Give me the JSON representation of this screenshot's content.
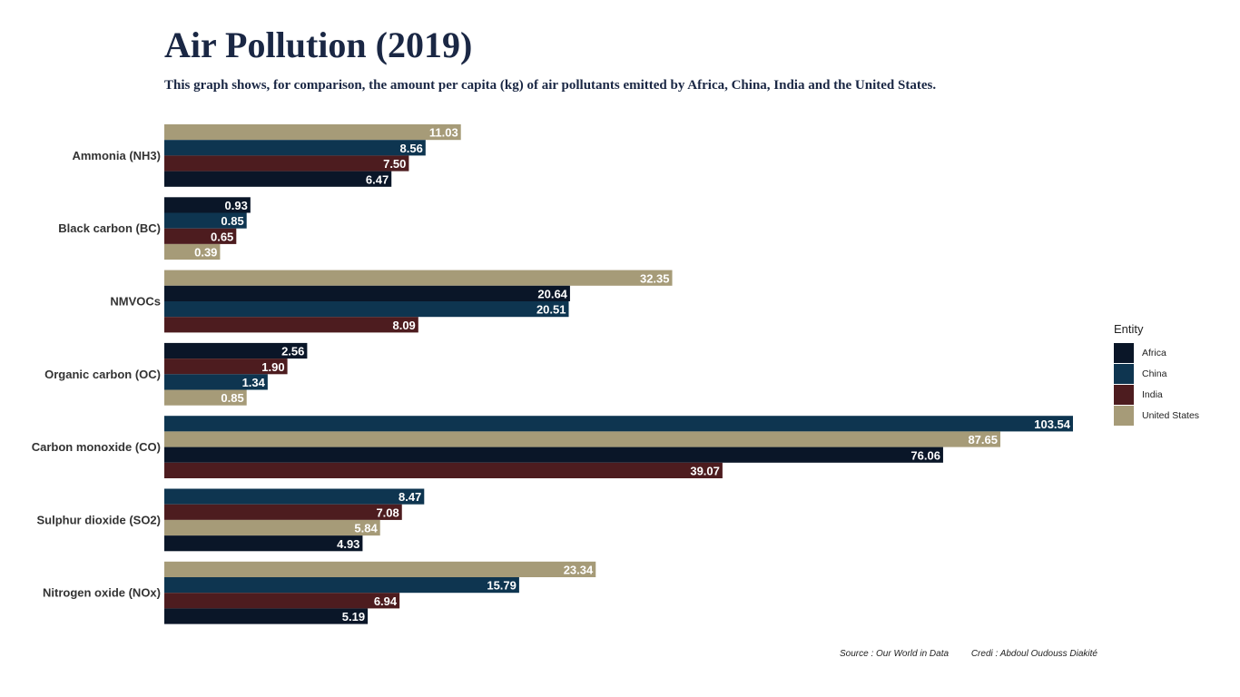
{
  "title": "Air Pollution (2019)",
  "subtitle": "This graph shows, for comparison, the amount per capita (kg) of air pollutants emitted by Africa, China, India and the United States.",
  "source": "Source : Our World in Data",
  "credit": "Credi : Abdoul Oudouss Diakité",
  "legend": {
    "title": "Entity",
    "items": [
      {
        "label": "Africa",
        "color": "#0a1628"
      },
      {
        "label": "China",
        "color": "#0e3550"
      },
      {
        "label": "India",
        "color": "#4d1c1f"
      },
      {
        "label": "United States",
        "color": "#a69b78"
      }
    ]
  },
  "chart_data": {
    "type": "bar",
    "orientation": "horizontal",
    "categories": [
      "Ammonia (NH3)",
      "Black carbon (BC)",
      "NMVOCs",
      "Organic carbon (OC)",
      "Carbon monoxide (CO)",
      "Sulphur dioxide (SO2)",
      "Nitrogen oxide (NOx)"
    ],
    "series": [
      {
        "name": "Africa",
        "color": "#0a1628",
        "values": [
          6.47,
          0.93,
          20.64,
          2.56,
          76.06,
          4.93,
          5.19
        ]
      },
      {
        "name": "China",
        "color": "#0e3550",
        "values": [
          8.56,
          0.85,
          20.51,
          1.34,
          103.54,
          8.47,
          15.79
        ]
      },
      {
        "name": "India",
        "color": "#4d1c1f",
        "values": [
          7.5,
          0.65,
          8.09,
          1.9,
          39.07,
          7.08,
          6.94
        ]
      },
      {
        "name": "United States",
        "color": "#a69b78",
        "values": [
          11.03,
          0.39,
          32.35,
          0.85,
          87.65,
          5.84,
          23.34
        ]
      }
    ],
    "bar_order": "within each category, bars sorted by value descending from top",
    "scale": "square-root",
    "xlim": [
      0,
      103.54
    ],
    "grid": false,
    "axis_ticks": false,
    "data_labels": true,
    "legend_position": "right"
  }
}
